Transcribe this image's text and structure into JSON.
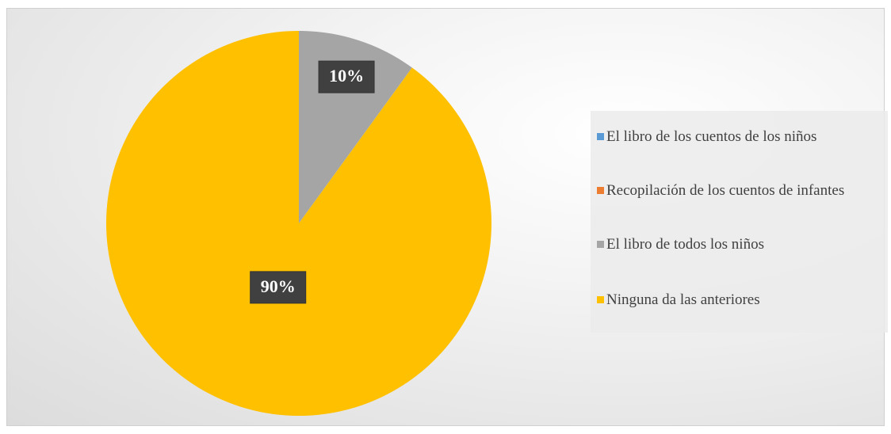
{
  "chart_data": {
    "type": "pie",
    "categories": [
      "El libro de los cuentos de los niños",
      "Recopilación de los cuentos de infantes",
      "El libro de todos los niños",
      "Ninguna da las anteriores"
    ],
    "values": [
      0,
      0,
      10,
      90
    ],
    "value_labels": [
      null,
      null,
      "10%",
      "90%"
    ],
    "colors": [
      "#5b9bd5",
      "#ed7d31",
      "#a5a5a5",
      "#ffc000"
    ],
    "legend": "right"
  }
}
